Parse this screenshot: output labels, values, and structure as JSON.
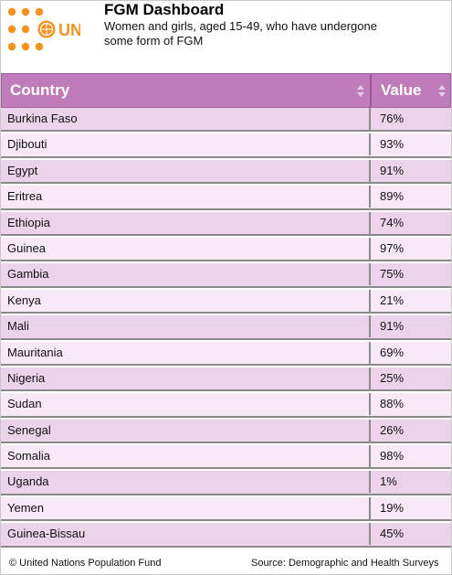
{
  "header": {
    "title": "FGM Dashboard",
    "subtitle": "Women and girls, aged 15-49, who have undergone some form of FGM",
    "logo_text": "UN",
    "logo_color": "#f6921e"
  },
  "table": {
    "header_color": "#be7cb9",
    "columns": [
      "Country",
      "Value"
    ],
    "rows": [
      {
        "country": "Burkina Faso",
        "value": "76%"
      },
      {
        "country": "Djibouti",
        "value": "93%"
      },
      {
        "country": "Egypt",
        "value": "91%"
      },
      {
        "country": "Eritrea",
        "value": "89%"
      },
      {
        "country": "Ethiopia",
        "value": "74%"
      },
      {
        "country": "Guinea",
        "value": "97%"
      },
      {
        "country": "Gambia",
        "value": "75%"
      },
      {
        "country": "Kenya",
        "value": "21%"
      },
      {
        "country": "Mali",
        "value": "91%"
      },
      {
        "country": "Mauritania",
        "value": "69%"
      },
      {
        "country": "Nigeria",
        "value": "25%"
      },
      {
        "country": "Sudan",
        "value": "88%"
      },
      {
        "country": "Senegal",
        "value": "26%"
      },
      {
        "country": "Somalia",
        "value": "98%"
      },
      {
        "country": "Uganda",
        "value": "1%"
      },
      {
        "country": "Yemen",
        "value": "19%"
      },
      {
        "country": "Guinea-Bissau",
        "value": "45%"
      }
    ]
  },
  "footer": {
    "copyright": "© United Nations Population Fund",
    "source": "Source: Demographic and Health Surveys"
  }
}
